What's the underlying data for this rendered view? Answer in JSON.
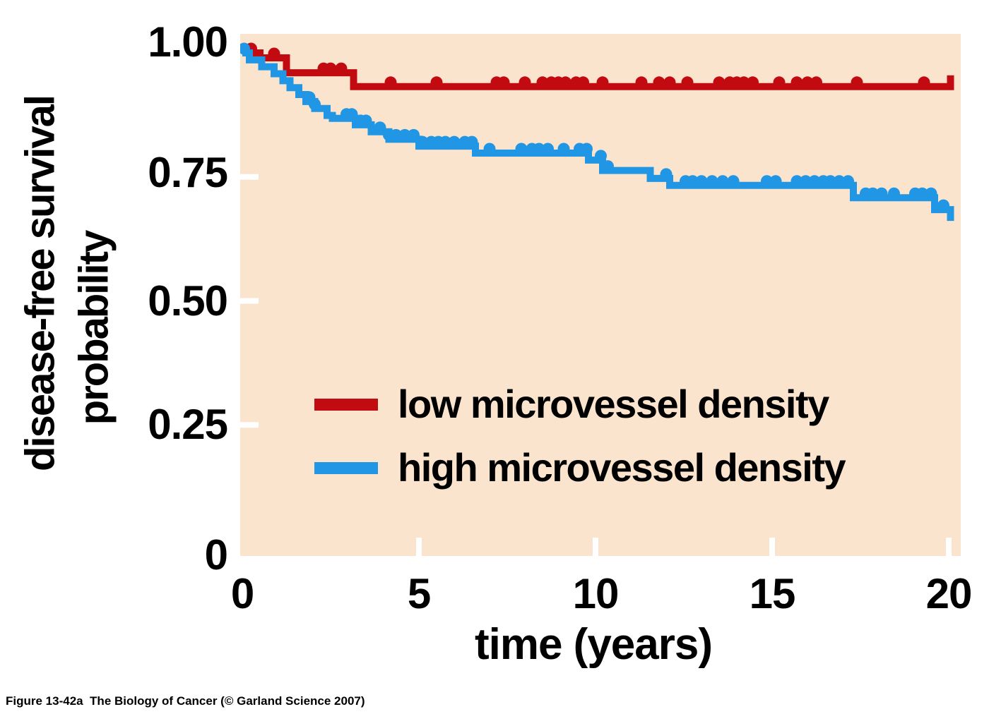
{
  "figure": {
    "caption": "Figure 13-42a  The Biology of Cancer (© Garland Science 2007)"
  },
  "colors": {
    "plot_background": "#fbe4cd",
    "low_density_red": "#c20a11",
    "high_density_blue": "#2196e4",
    "tick_white": "#ffffff",
    "text_black": "#000000"
  },
  "chart_data": {
    "type": "line",
    "subtype": "kaplan-meier-step-survival",
    "title": "",
    "xlabel": "time (years)",
    "ylabel_line1": "disease-free survival",
    "ylabel_line2": "probability",
    "xlim": [
      0,
      20.4
    ],
    "ylim": [
      0,
      1.04
    ],
    "grid": false,
    "legend_position": "inside-middle-left",
    "x_ticks": [
      {
        "value": 0,
        "label": "0",
        "dash": false
      },
      {
        "value": 5,
        "label": "5",
        "dash": true
      },
      {
        "value": 10,
        "label": "10",
        "dash": true
      },
      {
        "value": 15,
        "label": "15",
        "dash": true
      },
      {
        "value": 20,
        "label": "20",
        "dash": true
      }
    ],
    "y_ticks": [
      {
        "value": 1.0,
        "label": "1.00",
        "dash": false
      },
      {
        "value": 0.75,
        "label": "0.75",
        "dash": true
      },
      {
        "value": 0.5,
        "label": "0.50",
        "dash": true
      },
      {
        "value": 0.25,
        "label": "0.25",
        "dash": true
      },
      {
        "value": 0.0,
        "label": "0",
        "dash": false
      }
    ],
    "series": [
      {
        "name": "low microvessel density",
        "color": "#c20a11",
        "end_time": 20.05,
        "end_tick": "up",
        "step_points": [
          [
            0,
            1.0
          ],
          [
            0.5,
            0.99
          ],
          [
            1.25,
            0.96
          ],
          [
            3.15,
            0.932
          ]
        ],
        "censor_times": [
          0.25,
          0.9,
          2.3,
          2.5,
          2.8,
          4.2,
          5.5,
          7.2,
          7.4,
          8.0,
          8.5,
          8.75,
          8.95,
          9.15,
          9.45,
          9.65,
          10.2,
          11.3,
          11.8,
          12.1,
          12.6,
          13.5,
          13.8,
          14.0,
          14.2,
          14.45,
          15.2,
          15.7,
          16.0,
          16.25,
          17.4,
          19.3
        ]
      },
      {
        "name": "high microvessel density",
        "color": "#2196e4",
        "end_time": 20.05,
        "end_tick": "down",
        "step_points": [
          [
            0,
            1.0
          ],
          [
            0.2,
            0.986
          ],
          [
            0.55,
            0.972
          ],
          [
            0.9,
            0.958
          ],
          [
            1.15,
            0.944
          ],
          [
            1.35,
            0.93
          ],
          [
            1.6,
            0.916
          ],
          [
            1.8,
            0.902
          ],
          [
            2.05,
            0.888
          ],
          [
            2.4,
            0.874
          ],
          [
            2.55,
            0.868
          ],
          [
            3.2,
            0.855
          ],
          [
            3.65,
            0.841
          ],
          [
            4.15,
            0.826
          ],
          [
            5.0,
            0.812
          ],
          [
            6.6,
            0.798
          ],
          [
            9.8,
            0.784
          ],
          [
            10.2,
            0.763
          ],
          [
            11.55,
            0.747
          ],
          [
            12.1,
            0.733
          ],
          [
            17.3,
            0.708
          ],
          [
            19.6,
            0.684
          ]
        ],
        "censor_times": [
          0.05,
          1.9,
          2.05,
          2.95,
          3.1,
          3.35,
          3.5,
          3.9,
          4.15,
          4.35,
          4.6,
          4.85,
          5.1,
          5.35,
          5.55,
          5.75,
          6.0,
          6.3,
          6.5,
          7.0,
          7.9,
          8.2,
          8.4,
          8.65,
          9.1,
          9.55,
          9.75,
          10.15,
          10.35,
          12.0,
          12.55,
          12.75,
          13.0,
          13.3,
          13.6,
          13.9,
          14.85,
          15.1,
          15.7,
          15.95,
          16.2,
          16.45,
          16.65,
          16.9,
          17.15,
          17.65,
          17.85,
          18.1,
          18.45,
          19.05,
          19.25,
          19.5,
          19.85
        ]
      }
    ]
  }
}
